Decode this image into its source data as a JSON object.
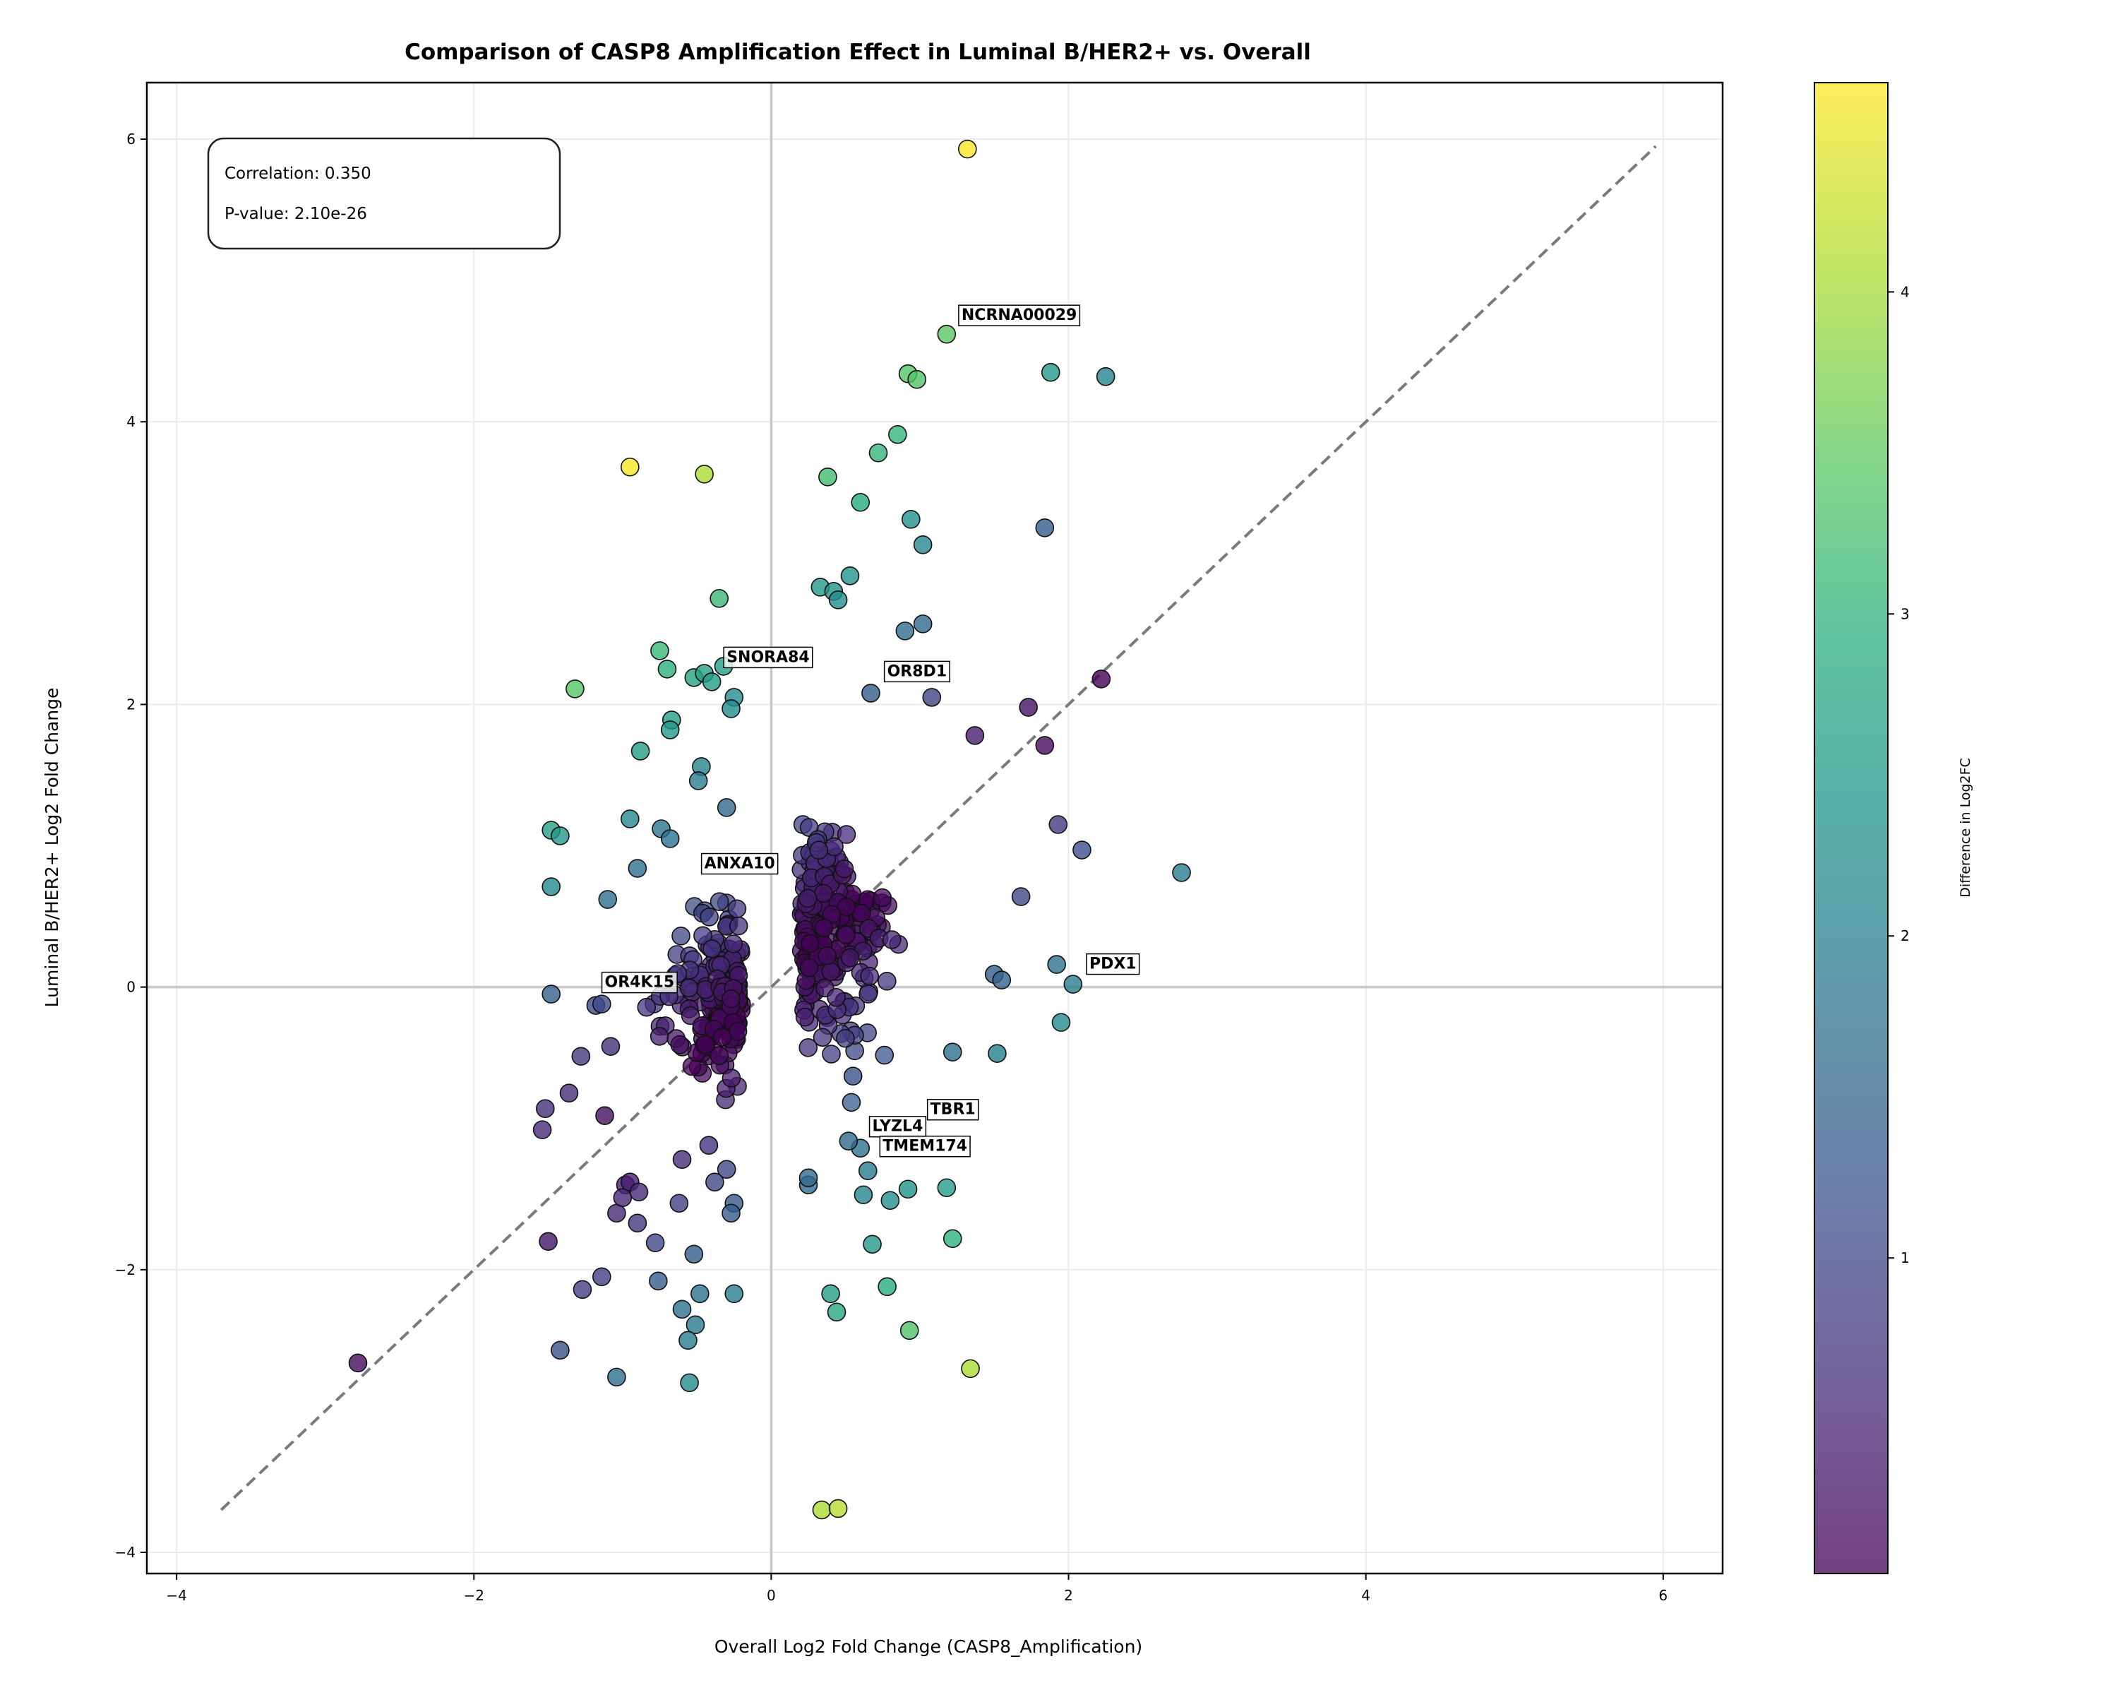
{
  "chart_data": {
    "type": "scatter",
    "title": "Comparison of CASP8 Amplification Effect in Luminal B/HER2+ vs. Overall",
    "xlabel": "Overall Log2 Fold Change (CASP8_Amplification)",
    "ylabel": "Luminal B/HER2+ Log2 Fold Change",
    "xlim": [
      -4.2,
      6.4
    ],
    "ylim": [
      -4.15,
      6.4
    ],
    "xticks": [
      -4,
      -2,
      0,
      2,
      4,
      6
    ],
    "yticks": [
      -4,
      -2,
      0,
      2,
      4,
      6
    ],
    "xtick_labels": [
      "−4",
      "−2",
      "0",
      "2",
      "4",
      "6"
    ],
    "ytick_labels": [
      "−4",
      "−2",
      "0",
      "2",
      "4",
      "6"
    ],
    "grid": true,
    "reference_lines": {
      "x0": true,
      "y0": true,
      "diagonal": [
        -3.7,
        5.95
      ]
    },
    "stats": {
      "line1": "Correlation: 0.350",
      "line2": "P-value: 2.10e-26"
    },
    "colorbar": {
      "label": "Difference in Log2FC",
      "colormap": "viridis",
      "range": [
        0.02,
        4.65
      ],
      "ticks": [
        1,
        2,
        3,
        4
      ],
      "tick_labels": [
        "1",
        "2",
        "3",
        "4"
      ]
    },
    "points": [
      [
        1.32,
        5.93
      ],
      [
        1.18,
        4.62
      ],
      [
        0.92,
        4.34
      ],
      [
        0.98,
        4.3
      ],
      [
        1.88,
        4.35
      ],
      [
        2.25,
        4.32
      ],
      [
        -0.95,
        3.68
      ],
      [
        -0.45,
        3.63
      ],
      [
        0.38,
        3.61
      ],
      [
        0.72,
        3.78
      ],
      [
        0.85,
        3.91
      ],
      [
        0.6,
        3.43
      ],
      [
        0.94,
        3.31
      ],
      [
        1.02,
        3.13
      ],
      [
        1.84,
        3.25
      ],
      [
        0.33,
        2.83
      ],
      [
        0.42,
        2.8
      ],
      [
        0.45,
        2.74
      ],
      [
        0.53,
        2.91
      ],
      [
        -0.35,
        2.75
      ],
      [
        0.9,
        2.52
      ],
      [
        1.02,
        2.57
      ],
      [
        -0.75,
        2.38
      ],
      [
        -1.32,
        2.11
      ],
      [
        -0.7,
        2.25
      ],
      [
        -0.52,
        2.19
      ],
      [
        -0.45,
        2.22
      ],
      [
        -0.4,
        2.16
      ],
      [
        -0.32,
        2.27
      ],
      [
        -0.25,
        2.05
      ],
      [
        -0.27,
        1.97
      ],
      [
        0.67,
        2.08
      ],
      [
        1.08,
        2.05
      ],
      [
        1.73,
        1.98
      ],
      [
        2.22,
        2.18
      ],
      [
        1.84,
        1.71
      ],
      [
        1.37,
        1.78
      ],
      [
        -0.67,
        1.89
      ],
      [
        -0.68,
        1.82
      ],
      [
        -0.88,
        1.67
      ],
      [
        -0.47,
        1.56
      ],
      [
        -0.49,
        1.46
      ],
      [
        -1.48,
        1.11
      ],
      [
        -1.42,
        1.07
      ],
      [
        -0.95,
        1.19
      ],
      [
        -0.74,
        1.12
      ],
      [
        -0.68,
        1.05
      ],
      [
        -0.3,
        1.27
      ],
      [
        -1.48,
        0.71
      ],
      [
        -1.1,
        0.62
      ],
      [
        -0.9,
        0.84
      ],
      [
        1.93,
        1.15
      ],
      [
        2.09,
        0.97
      ],
      [
        2.76,
        0.81
      ],
      [
        1.68,
        0.64
      ],
      [
        1.92,
        0.16
      ],
      [
        2.03,
        0.02
      ],
      [
        1.5,
        0.09
      ],
      [
        1.55,
        0.05
      ],
      [
        1.95,
        -0.25
      ],
      [
        -1.48,
        -0.05
      ],
      [
        -1.18,
        -0.13
      ],
      [
        -1.14,
        -0.12
      ],
      [
        -1.28,
        -0.49
      ],
      [
        -1.36,
        -0.75
      ],
      [
        -1.54,
        -1.01
      ],
      [
        -1.52,
        -0.86
      ],
      [
        -1.5,
        -1.8
      ],
      [
        -1.08,
        -0.42
      ],
      [
        -1.12,
        -0.91
      ],
      [
        -1.04,
        -1.6
      ],
      [
        -0.98,
        -1.4
      ],
      [
        -1.0,
        -1.49
      ],
      [
        -0.95,
        -1.38
      ],
      [
        -0.89,
        -1.45
      ],
      [
        -0.9,
        -1.67
      ],
      [
        -0.78,
        -1.81
      ],
      [
        -0.76,
        -2.08
      ],
      [
        -1.27,
        -2.14
      ],
      [
        -1.14,
        -2.05
      ],
      [
        -1.42,
        -2.57
      ],
      [
        -1.04,
        -2.76
      ],
      [
        -0.6,
        -2.28
      ],
      [
        -0.51,
        -2.39
      ],
      [
        -0.48,
        -2.17
      ],
      [
        -0.56,
        -2.5
      ],
      [
        -0.55,
        -2.8
      ],
      [
        -0.25,
        -2.17
      ],
      [
        -0.52,
        -1.89
      ],
      [
        -2.78,
        -2.66
      ],
      [
        0.4,
        -2.17
      ],
      [
        0.44,
        -2.3
      ],
      [
        0.78,
        -2.12
      ],
      [
        0.93,
        -2.43
      ],
      [
        1.34,
        -2.7
      ],
      [
        0.34,
        -3.7
      ],
      [
        0.45,
        -3.69
      ],
      [
        0.68,
        -1.82
      ],
      [
        0.8,
        -1.51
      ],
      [
        0.92,
        -1.43
      ],
      [
        1.18,
        -1.42
      ],
      [
        1.22,
        -1.78
      ],
      [
        0.62,
        -1.47
      ],
      [
        0.65,
        -1.3
      ],
      [
        0.6,
        -1.14
      ],
      [
        0.52,
        -1.09
      ],
      [
        0.25,
        -1.4
      ],
      [
        0.25,
        -1.35
      ],
      [
        1.22,
        -0.46
      ],
      [
        1.52,
        -0.47
      ],
      [
        0.55,
        -0.63
      ],
      [
        -0.3,
        -1.29
      ],
      [
        -0.6,
        -1.22
      ],
      [
        -0.62,
        -1.53
      ],
      [
        -0.25,
        -1.53
      ],
      [
        -0.27,
        -1.6
      ],
      [
        -0.38,
        -1.38
      ],
      [
        -0.42,
        -1.12
      ]
    ],
    "point_diffs": [
      4.62,
      3.45,
      3.4,
      3.35,
      2.45,
      2.1,
      4.6,
      4.05,
      3.2,
      3.05,
      3.05,
      2.85,
      2.35,
      2.15,
      1.4,
      2.5,
      2.4,
      2.3,
      2.4,
      3.1,
      1.65,
      1.6,
      3.1,
      3.4,
      2.95,
      2.7,
      2.65,
      2.55,
      2.6,
      2.3,
      2.25,
      1.4,
      0.95,
      0.25,
      0.05,
      0.15,
      0.4,
      2.55,
      2.5,
      2.55,
      2.05,
      1.95,
      2.6,
      2.5,
      2.15,
      1.85,
      1.75,
      1.55,
      2.2,
      1.7,
      1.7,
      0.8,
      1.1,
      1.95,
      1.05,
      1.75,
      2.0,
      1.4,
      1.5,
      2.2,
      1.45,
      1.05,
      1.05,
      0.8,
      0.6,
      0.55,
      0.65,
      0.3,
      0.65,
      0.2,
      0.55,
      0.4,
      0.5,
      0.4,
      0.55,
      0.75,
      1.05,
      1.35,
      0.85,
      0.9,
      1.15,
      1.7,
      1.7,
      1.9,
      1.7,
      1.95,
      2.25,
      1.95,
      1.4,
      0.15,
      2.6,
      2.75,
      2.9,
      3.35,
      4.05,
      4.05,
      4.15,
      2.5,
      2.3,
      2.35,
      2.6,
      3.0,
      2.1,
      1.95,
      1.75,
      1.6,
      1.65,
      1.6,
      1.7,
      2.0,
      1.2,
      1.0,
      0.6,
      0.9,
      1.3,
      1.35,
      1.0,
      0.7
    ],
    "annotations": [
      {
        "text": "NCRNA00029",
        "x": 1.28,
        "y": 4.72
      },
      {
        "text": "SNORA84",
        "x": -0.3,
        "y": 2.3
      },
      {
        "text": "OR8D1",
        "x": 0.78,
        "y": 2.2
      },
      {
        "text": "ANXA10",
        "x": -0.45,
        "y": 0.84
      },
      {
        "text": "PDX1",
        "x": 2.14,
        "y": 0.13
      },
      {
        "text": "OR4K15",
        "x": -1.12,
        "y": 0.0
      },
      {
        "text": "TBR1",
        "x": 1.07,
        "y": -0.9
      },
      {
        "text": "LYZL4",
        "x": 0.68,
        "y": -1.02
      },
      {
        "text": "TMEM174",
        "x": 0.75,
        "y": -1.16
      }
    ]
  }
}
